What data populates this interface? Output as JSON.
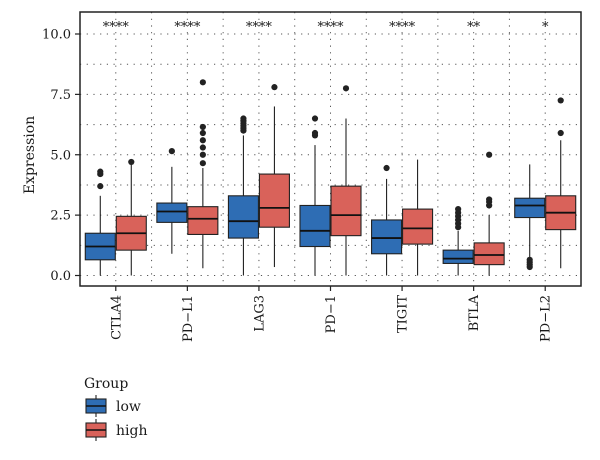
{
  "chart_data": {
    "type": "boxplot",
    "ylabel": "Expression",
    "ylim": [
      -0.3,
      10.5
    ],
    "yticks": [
      "0.0",
      "2.5",
      "5.0",
      "7.5",
      "10.0"
    ],
    "grid": "dotted",
    "categories": [
      "CTLA4",
      "PD−L1",
      "LAG3",
      "PD−1",
      "TIGIT",
      "BTLA",
      "PD−L2"
    ],
    "significance": [
      "****",
      "****",
      "****",
      "****",
      "****",
      "**",
      "*"
    ],
    "legend": {
      "title": "Group",
      "position": "bottom-left"
    },
    "series": [
      {
        "name": "low",
        "color": "#2E6DB4",
        "boxes": [
          {
            "whisker_low": 0.0,
            "q1": 0.65,
            "median": 1.2,
            "q3": 1.75,
            "whisker_high": 3.3,
            "outliers": [
              3.7,
              4.2,
              4.3
            ]
          },
          {
            "whisker_low": 0.9,
            "q1": 2.2,
            "median": 2.65,
            "q3": 3.0,
            "whisker_high": 4.5,
            "outliers": [
              5.15
            ]
          },
          {
            "whisker_low": 0.0,
            "q1": 1.55,
            "median": 2.25,
            "q3": 3.3,
            "whisker_high": 5.8,
            "outliers": [
              6.0,
              6.1,
              6.2,
              6.3,
              6.4,
              6.5
            ]
          },
          {
            "whisker_low": 0.0,
            "q1": 1.2,
            "median": 1.85,
            "q3": 2.9,
            "whisker_high": 5.4,
            "outliers": [
              5.8,
              5.9,
              6.5
            ]
          },
          {
            "whisker_low": 0.0,
            "q1": 0.9,
            "median": 1.55,
            "q3": 2.3,
            "whisker_high": 4.0,
            "outliers": [
              4.45
            ]
          },
          {
            "whisker_low": 0.0,
            "q1": 0.5,
            "median": 0.7,
            "q3": 1.05,
            "whisker_high": 1.85,
            "outliers": [
              2.0,
              2.15,
              2.3,
              2.45,
              2.6,
              2.75
            ]
          },
          {
            "whisker_low": 0.75,
            "q1": 2.4,
            "median": 2.9,
            "q3": 3.2,
            "whisker_high": 4.6,
            "outliers": [
              0.35,
              0.45,
              0.55,
              0.65
            ]
          }
        ]
      },
      {
        "name": "high",
        "color": "#D9625A",
        "boxes": [
          {
            "whisker_low": 0.0,
            "q1": 1.05,
            "median": 1.75,
            "q3": 2.45,
            "whisker_high": 4.6,
            "outliers": [
              4.7
            ]
          },
          {
            "whisker_low": 0.3,
            "q1": 1.7,
            "median": 2.35,
            "q3": 2.85,
            "whisker_high": 4.45,
            "outliers": [
              4.65,
              5.0,
              5.3,
              5.6,
              5.9,
              6.15,
              8.0
            ]
          },
          {
            "whisker_low": 0.35,
            "q1": 2.0,
            "median": 2.8,
            "q3": 4.2,
            "whisker_high": 7.0,
            "outliers": [
              7.8
            ]
          },
          {
            "whisker_low": 0.0,
            "q1": 1.65,
            "median": 2.5,
            "q3": 3.7,
            "whisker_high": 6.5,
            "outliers": [
              7.75
            ]
          },
          {
            "whisker_low": 0.0,
            "q1": 1.3,
            "median": 1.95,
            "q3": 2.75,
            "whisker_high": 4.8,
            "outliers": []
          },
          {
            "whisker_low": 0.0,
            "q1": 0.45,
            "median": 0.85,
            "q3": 1.35,
            "whisker_high": 2.5,
            "outliers": [
              2.9,
              3.05,
              3.15,
              5.0
            ]
          },
          {
            "whisker_low": 0.3,
            "q1": 1.9,
            "median": 2.6,
            "q3": 3.3,
            "whisker_high": 5.6,
            "outliers": [
              5.9,
              7.25
            ]
          }
        ]
      }
    ]
  }
}
